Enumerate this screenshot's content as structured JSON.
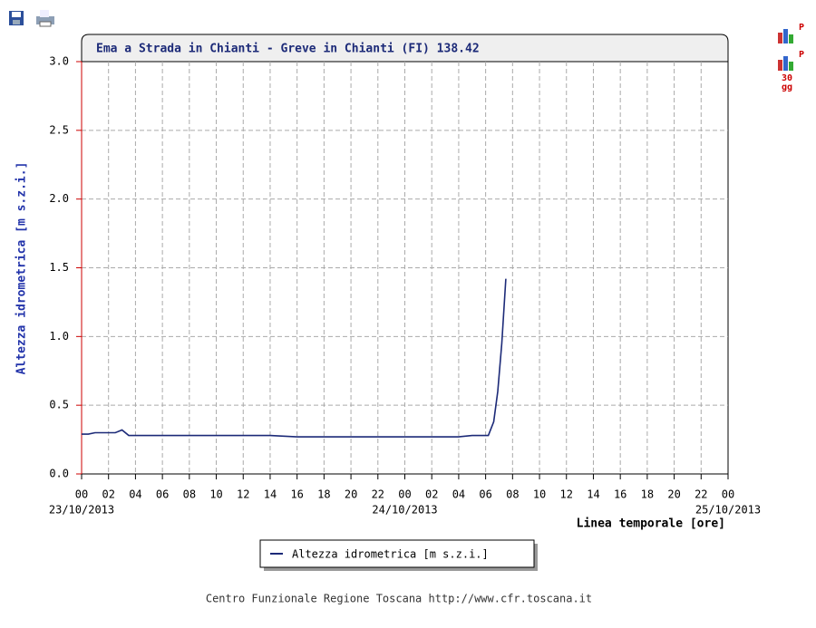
{
  "chart_data": {
    "type": "line",
    "title": "Ema a Strada in Chianti - Greve in Chianti (FI) 138.42",
    "y_label": "Altezza idrometrica [m s.z.i.]",
    "x_label": "Linea temporale [ore]",
    "x": [
      0,
      0.5,
      1,
      1.5,
      2,
      2.5,
      3,
      3.5,
      4,
      6,
      8,
      10,
      12,
      14,
      16,
      18,
      20,
      22,
      24,
      26,
      28,
      29,
      30.2,
      30.6,
      30.9,
      31.2,
      31.5
    ],
    "series": [
      {
        "name": "Altezza idrometrica [m s.z.i.]",
        "color": "#1c2a78",
        "values": [
          0.29,
          0.29,
          0.3,
          0.3,
          0.3,
          0.3,
          0.32,
          0.28,
          0.28,
          0.28,
          0.28,
          0.28,
          0.28,
          0.28,
          0.27,
          0.27,
          0.27,
          0.27,
          0.27,
          0.27,
          0.27,
          0.28,
          0.28,
          0.38,
          0.6,
          0.95,
          1.42
        ]
      }
    ],
    "xlim": [
      0,
      48
    ],
    "xticks": [
      {
        "value": 0,
        "label": "00"
      },
      {
        "value": 2,
        "label": "02"
      },
      {
        "value": 4,
        "label": "04"
      },
      {
        "value": 6,
        "label": "06"
      },
      {
        "value": 8,
        "label": "08"
      },
      10,
      12,
      14,
      16,
      18,
      20,
      22,
      {
        "value": 24,
        "label": "00"
      },
      {
        "value": 26,
        "label": "02"
      },
      {
        "value": 28,
        "label": "04"
      },
      {
        "value": 30,
        "label": "06"
      },
      {
        "value": 32,
        "label": "08"
      },
      {
        "value": 34,
        "label": "10"
      },
      {
        "value": 36,
        "label": "12"
      },
      {
        "value": 38,
        "label": "14"
      },
      {
        "value": 40,
        "label": "16"
      },
      {
        "value": 42,
        "label": "18"
      },
      {
        "value": 44,
        "label": "20"
      },
      {
        "value": 46,
        "label": "22"
      },
      {
        "value": 48,
        "label": "00"
      }
    ],
    "x_date_labels": [
      {
        "value": 0,
        "label": "23/10/2013"
      },
      {
        "value": 24,
        "label": "24/10/2013"
      },
      {
        "value": 48,
        "label": "25/10/2013"
      }
    ],
    "ylim": [
      0,
      3
    ],
    "yticks": [
      {
        "value": 0,
        "label": "0.0"
      },
      0.5,
      {
        "value": 1,
        "label": "1.0"
      },
      1.5,
      {
        "value": 2,
        "label": "2.0"
      },
      2.5,
      {
        "value": 3,
        "label": "3.0"
      }
    ],
    "grid": true
  },
  "toolbar": {
    "chart_icon_1": "P",
    "chart_icon_2": {
      "badge": "P",
      "caption_1": "30",
      "caption_2": "gg"
    }
  },
  "footer": "Centro Funzionale Regione Toscana http://www.cfr.toscana.it"
}
